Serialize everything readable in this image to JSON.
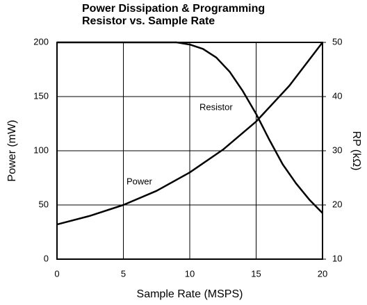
{
  "chart_data": {
    "type": "line",
    "title": [
      "Power Dissipation & Programming",
      "Resistor vs. Sample Rate"
    ],
    "xlabel": "Sample Rate (MSPS)",
    "ylabel": "Power (mW)",
    "y2label": "RP (kΩ)",
    "xlim": [
      0,
      20
    ],
    "xticks": [
      0,
      5,
      10,
      15,
      20
    ],
    "ylim": [
      0,
      200
    ],
    "yticks": [
      0,
      50,
      100,
      150,
      200
    ],
    "y2lim": [
      10,
      50
    ],
    "y2ticks": [
      10,
      20,
      30,
      40,
      50
    ],
    "grid": true,
    "series": [
      {
        "name": "Power",
        "color": "#000000",
        "x": [
          0,
          2.5,
          5,
          7.5,
          10,
          12.5,
          15,
          17.5,
          20
        ],
        "values": [
          32,
          40,
          50,
          63,
          80,
          101,
          127,
          160,
          200
        ]
      },
      {
        "name": "Resistor",
        "color": "#000000",
        "axis": "y2",
        "x": [
          0,
          5,
          8,
          9,
          10,
          11,
          12,
          13,
          14,
          15,
          16,
          17,
          18,
          19,
          20
        ],
        "values": [
          50,
          50,
          50,
          50,
          49.6,
          48.8,
          47.2,
          44.6,
          41,
          36.8,
          32,
          27.5,
          24,
          21,
          18.5
        ]
      }
    ]
  }
}
